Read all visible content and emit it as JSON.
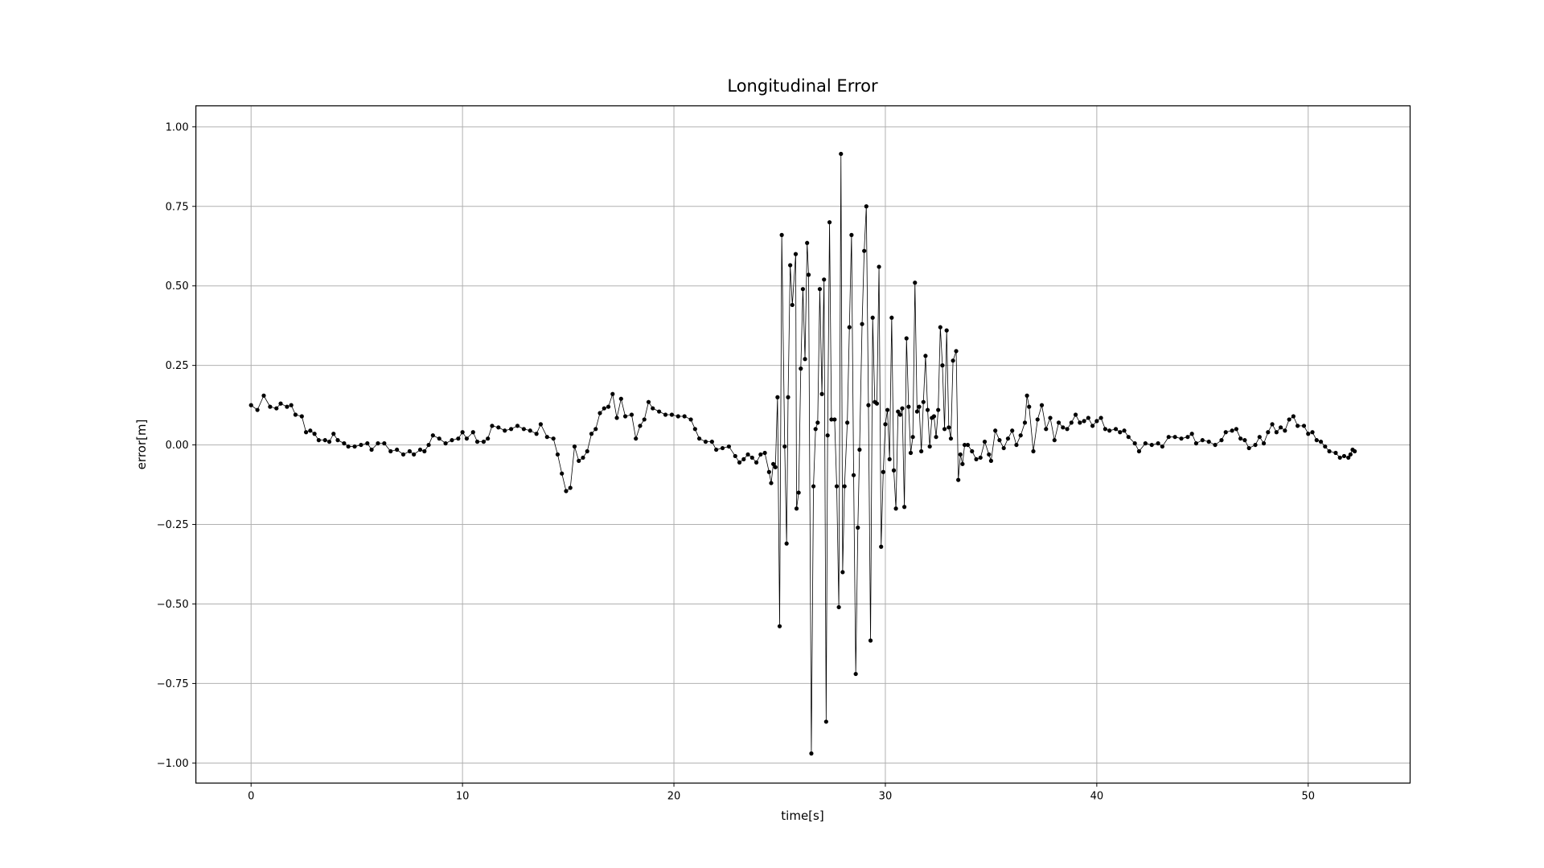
{
  "chart_data": {
    "type": "line",
    "title": "Longitudinal Error",
    "xlabel": "time[s]",
    "ylabel": "error[m]",
    "color": "#000000",
    "grid": true,
    "xlim": [
      -2.61,
      54.82
    ],
    "ylim": [
      -1.063,
      1.066
    ],
    "xticks": [
      0,
      10,
      20,
      30,
      40,
      50
    ],
    "yticks": [
      {
        "value": 1.0,
        "label": "1.00"
      },
      {
        "value": 0.75,
        "label": "0.75"
      },
      {
        "value": 0.5,
        "label": "0.50"
      },
      {
        "value": 0.25,
        "label": "0.25"
      },
      {
        "value": 0,
        "label": "0.00"
      },
      {
        "value": -0.25,
        "label": "−0.25"
      },
      {
        "value": -0.5,
        "label": "−0.50"
      },
      {
        "value": -0.75,
        "label": "−0.75"
      },
      {
        "value": -1.0,
        "label": "−1.00"
      }
    ],
    "x": [
      0,
      0.3,
      0.6,
      0.9,
      1.2,
      1.4,
      1.7,
      1.9,
      2.1,
      2.4,
      2.6,
      2.8,
      3.0,
      3.2,
      3.5,
      3.7,
      3.9,
      4.1,
      4.4,
      4.6,
      4.9,
      5.2,
      5.5,
      5.7,
      6.0,
      6.3,
      6.6,
      6.9,
      7.2,
      7.5,
      7.7,
      8.0,
      8.2,
      8.4,
      8.6,
      8.9,
      9.2,
      9.5,
      9.8,
      10.0,
      10.2,
      10.5,
      10.7,
      11.0,
      11.2,
      11.4,
      11.7,
      12.0,
      12.3,
      12.6,
      12.9,
      13.2,
      13.5,
      13.7,
      14.0,
      14.3,
      14.5,
      14.7,
      14.9,
      15.1,
      15.3,
      15.5,
      15.7,
      15.9,
      16.1,
      16.3,
      16.5,
      16.7,
      16.9,
      17.1,
      17.3,
      17.5,
      17.7,
      18.0,
      18.2,
      18.4,
      18.6,
      18.8,
      19.0,
      19.3,
      19.6,
      19.9,
      20.2,
      20.5,
      20.8,
      21.0,
      21.2,
      21.5,
      21.8,
      22.0,
      22.3,
      22.6,
      22.9,
      23.1,
      23.3,
      23.5,
      23.7,
      23.9,
      24.1,
      24.3,
      24.5,
      24.6,
      24.7,
      24.8,
      24.9,
      25.0,
      25.1,
      25.24,
      25.33,
      25.4,
      25.5,
      25.6,
      25.76,
      25.8,
      25.9,
      26.0,
      26.1,
      26.2,
      26.3,
      26.37,
      26.5,
      26.6,
      26.7,
      26.8,
      26.9,
      27.0,
      27.1,
      27.2,
      27.27,
      27.36,
      27.45,
      27.6,
      27.7,
      27.8,
      27.9,
      27.98,
      28.07,
      28.2,
      28.3,
      28.4,
      28.5,
      28.6,
      28.7,
      28.78,
      28.9,
      29.0,
      29.1,
      29.2,
      29.3,
      29.4,
      29.5,
      29.6,
      29.7,
      29.8,
      29.9,
      30.0,
      30.1,
      30.2,
      30.3,
      30.4,
      30.5,
      30.6,
      30.7,
      30.8,
      30.9,
      31.0,
      31.1,
      31.2,
      31.3,
      31.4,
      31.5,
      31.6,
      31.7,
      31.8,
      31.9,
      32.0,
      32.1,
      32.2,
      32.3,
      32.4,
      32.5,
      32.6,
      32.7,
      32.8,
      32.9,
      33.0,
      33.1,
      33.2,
      33.35,
      33.45,
      33.55,
      33.65,
      33.75,
      33.9,
      34.1,
      34.3,
      34.5,
      34.7,
      34.9,
      35.0,
      35.2,
      35.4,
      35.6,
      35.8,
      36.0,
      36.2,
      36.4,
      36.6,
      36.7,
      36.8,
      37.0,
      37.2,
      37.4,
      37.6,
      37.8,
      38.0,
      38.2,
      38.4,
      38.6,
      38.8,
      39.0,
      39.2,
      39.4,
      39.6,
      39.8,
      40.0,
      40.2,
      40.4,
      40.6,
      40.9,
      41.1,
      41.3,
      41.5,
      41.8,
      42.0,
      42.3,
      42.6,
      42.9,
      43.1,
      43.4,
      43.7,
      44.0,
      44.3,
      44.5,
      44.7,
      45.0,
      45.3,
      45.6,
      45.9,
      46.1,
      46.4,
      46.6,
      46.8,
      47.0,
      47.2,
      47.5,
      47.7,
      47.9,
      48.1,
      48.3,
      48.5,
      48.7,
      48.9,
      49.1,
      49.3,
      49.5,
      49.8,
      50.0,
      50.2,
      50.4,
      50.6,
      50.8,
      51.0,
      51.3,
      51.5,
      51.7,
      51.9,
      52.0,
      52.1,
      52.2
    ],
    "values": [
      0.125,
      0.11,
      0.155,
      0.12,
      0.115,
      0.13,
      0.12,
      0.125,
      0.095,
      0.09,
      0.04,
      0.045,
      0.035,
      0.015,
      0.015,
      0.01,
      0.035,
      0.015,
      0.005,
      -0.005,
      -0.005,
      0.0,
      0.005,
      -0.015,
      0.005,
      0.005,
      -0.02,
      -0.015,
      -0.03,
      -0.02,
      -0.03,
      -0.015,
      -0.02,
      0.0,
      0.03,
      0.02,
      0.005,
      0.015,
      0.02,
      0.04,
      0.02,
      0.04,
      0.01,
      0.01,
      0.02,
      0.06,
      0.055,
      0.045,
      0.05,
      0.06,
      0.05,
      0.045,
      0.035,
      0.065,
      0.025,
      0.02,
      -0.03,
      -0.09,
      -0.145,
      -0.135,
      -0.005,
      -0.05,
      -0.04,
      -0.02,
      0.035,
      0.05,
      0.1,
      0.115,
      0.12,
      0.16,
      0.085,
      0.145,
      0.09,
      0.095,
      0.02,
      0.06,
      0.08,
      0.135,
      0.115,
      0.105,
      0.095,
      0.095,
      0.09,
      0.09,
      0.08,
      0.05,
      0.02,
      0.01,
      0.01,
      -0.015,
      -0.01,
      -0.005,
      -0.035,
      -0.055,
      -0.045,
      -0.03,
      -0.04,
      -0.055,
      -0.03,
      -0.025,
      -0.085,
      -0.12,
      -0.06,
      -0.07,
      0.15,
      -0.57,
      0.66,
      -0.005,
      -0.31,
      0.15,
      0.565,
      0.44,
      0.6,
      -0.2,
      -0.15,
      0.24,
      0.49,
      0.27,
      0.635,
      0.535,
      -0.97,
      -0.13,
      0.05,
      0.07,
      0.49,
      0.16,
      0.52,
      -0.87,
      0.03,
      0.7,
      0.08,
      0.08,
      -0.13,
      -0.51,
      0.915,
      -0.4,
      -0.13,
      0.07,
      0.37,
      0.66,
      -0.095,
      -0.72,
      -0.26,
      -0.015,
      0.38,
      0.61,
      0.75,
      0.125,
      -0.615,
      0.4,
      0.135,
      0.13,
      0.56,
      -0.32,
      -0.085,
      0.065,
      0.11,
      -0.045,
      0.4,
      -0.08,
      -0.2,
      0.105,
      0.095,
      0.115,
      -0.195,
      0.335,
      0.12,
      -0.025,
      0.025,
      0.51,
      0.105,
      0.12,
      -0.02,
      0.135,
      0.28,
      0.11,
      -0.005,
      0.085,
      0.09,
      0.025,
      0.11,
      0.37,
      0.25,
      0.05,
      0.36,
      0.055,
      0.02,
      0.265,
      0.295,
      -0.11,
      -0.03,
      -0.06,
      0.0,
      0.0,
      -0.02,
      -0.045,
      -0.04,
      0.01,
      -0.03,
      -0.05,
      0.045,
      0.015,
      -0.01,
      0.02,
      0.045,
      0.0,
      0.03,
      0.07,
      0.155,
      0.12,
      -0.02,
      0.08,
      0.125,
      0.05,
      0.085,
      0.015,
      0.07,
      0.055,
      0.05,
      0.07,
      0.095,
      0.07,
      0.075,
      0.085,
      0.06,
      0.075,
      0.085,
      0.05,
      0.045,
      0.05,
      0.04,
      0.045,
      0.025,
      0.005,
      -0.02,
      0.005,
      0.0,
      0.005,
      -0.005,
      0.025,
      0.025,
      0.02,
      0.025,
      0.035,
      0.005,
      0.015,
      0.01,
      0.0,
      0.015,
      0.04,
      0.045,
      0.05,
      0.02,
      0.015,
      -0.01,
      0.0,
      0.025,
      0.005,
      0.04,
      0.065,
      0.04,
      0.055,
      0.045,
      0.08,
      0.09,
      0.06,
      0.06,
      0.035,
      0.04,
      0.015,
      0.01,
      -0.005,
      -0.02,
      -0.025,
      -0.04,
      -0.035,
      -0.04,
      -0.03,
      -0.015,
      -0.02
    ]
  }
}
